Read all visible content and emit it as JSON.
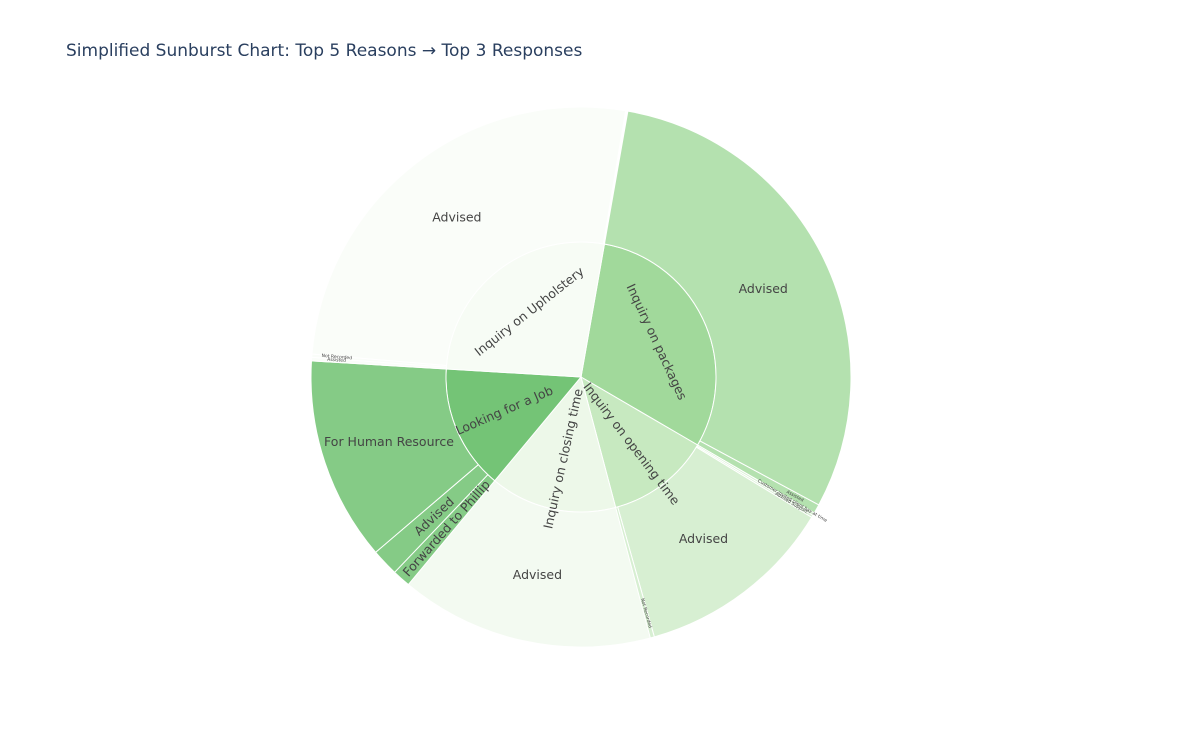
{
  "chart_data": {
    "type": "sunburst",
    "title": "Simplified Sunburst Chart: Top 5 Reasons → Top 3 Responses",
    "colors": {
      "Inquiry on packages": "#a1d99b",
      "Inquiry on Upholstery": "#f7fcf5",
      "Looking for a Job": "#74c476",
      "Inquiry on closing time": "#edf8e9",
      "Inquiry on opening time": "#c7e9c0",
      "border": "#ffffff"
    },
    "reasons": [
      {
        "name": "Inquiry on packages",
        "value": 113,
        "responses": [
          {
            "name": "Advised",
            "value": 111
          },
          {
            "name": "Assisted",
            "value": 2
          }
        ]
      },
      {
        "name": "Inquiry on opening time",
        "value": 46,
        "responses": [
          {
            "name": "Customer invited client bay at time",
            "value": 0.6
          },
          {
            "name": "Advised Support",
            "value": 0.5
          },
          {
            "name": "Advised",
            "value": 44
          },
          {
            "name": "Not Recorded",
            "value": 1
          }
        ]
      },
      {
        "name": "Inquiry on closing time",
        "value": 56,
        "responses": [
          {
            "name": "Advised",
            "value": 56
          }
        ]
      },
      {
        "name": "Looking for a Job",
        "value": 55,
        "responses": [
          {
            "name": "Forwarded to Phillip",
            "value": 4
          },
          {
            "name": "Advised",
            "value": 6
          },
          {
            "name": "For Human Resource",
            "value": 45
          }
        ]
      },
      {
        "name": "Inquiry on Upholstery",
        "value": 99,
        "responses": [
          {
            "name": "Assisted",
            "value": 0.8
          },
          {
            "name": "Not Recorded",
            "value": 0.7
          },
          {
            "name": "Advised",
            "value": 97
          }
        ]
      }
    ]
  }
}
